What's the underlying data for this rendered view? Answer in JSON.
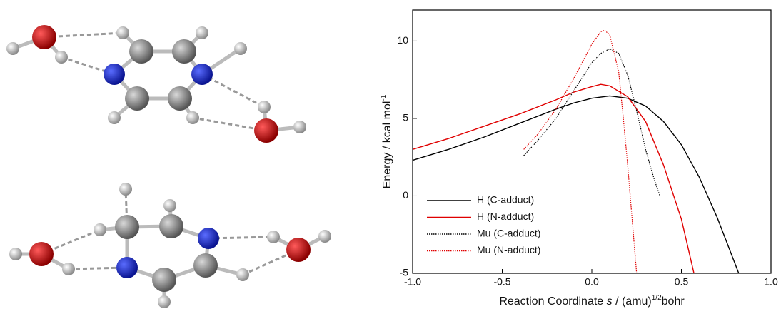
{
  "chart_data": {
    "type": "line",
    "xlabel": {
      "text": "Reaction Coordinate ",
      "symbol": "s",
      "unit": " / (amu)",
      "exponent": "1/2",
      "tail": "bohr"
    },
    "ylabel": {
      "text": "Energy / kcal mol",
      "exponent": "-1"
    },
    "xlim": [
      -1.0,
      1.0
    ],
    "ylim": [
      -5,
      12
    ],
    "xticks": [
      {
        "value": -1.0,
        "label": "-1.0"
      },
      {
        "value": -0.5,
        "label": "-0.5"
      },
      {
        "value": 0,
        "label": "0.0"
      },
      {
        "value": 0.5,
        "label": "0.5"
      },
      {
        "value": 1.0,
        "label": "1.0"
      }
    ],
    "yticks": [
      -5,
      0,
      5,
      10
    ],
    "legend": "lower left",
    "series": [
      {
        "name": "H (C-adduct)",
        "color": "#000000",
        "style": "solid",
        "x": [
          -1.0,
          -0.8,
          -0.6,
          -0.4,
          -0.2,
          -0.1,
          0.0,
          0.1,
          0.2,
          0.3,
          0.4,
          0.5,
          0.6,
          0.7,
          0.82
        ],
        "values": [
          2.3,
          3.0,
          3.8,
          4.7,
          5.6,
          6.0,
          6.3,
          6.45,
          6.3,
          5.8,
          4.8,
          3.3,
          1.2,
          -1.4,
          -5.0
        ]
      },
      {
        "name": "H (N-adduct)",
        "color": "#e00000",
        "style": "solid",
        "x": [
          -1.0,
          -0.8,
          -0.6,
          -0.4,
          -0.2,
          -0.1,
          0.0,
          0.05,
          0.1,
          0.2,
          0.3,
          0.4,
          0.5,
          0.57
        ],
        "values": [
          3.0,
          3.7,
          4.5,
          5.3,
          6.2,
          6.7,
          7.05,
          7.2,
          7.1,
          6.4,
          4.8,
          2.0,
          -1.5,
          -5.0
        ]
      },
      {
        "name": "Mu (C-adduct)",
        "color": "#000000",
        "style": "dotted",
        "x": [
          -0.38,
          -0.3,
          -0.2,
          -0.1,
          0.0,
          0.05,
          0.1,
          0.15,
          0.2,
          0.25,
          0.3,
          0.35,
          0.38
        ],
        "values": [
          2.6,
          3.6,
          5.0,
          6.8,
          8.6,
          9.2,
          9.5,
          9.2,
          7.8,
          5.5,
          3.0,
          1.0,
          0.0
        ]
      },
      {
        "name": "Mu (N-adduct)",
        "color": "#e00000",
        "style": "dotted",
        "x": [
          -0.38,
          -0.3,
          -0.2,
          -0.1,
          0.0,
          0.05,
          0.07,
          0.1,
          0.15,
          0.18,
          0.2,
          0.22,
          0.25
        ],
        "values": [
          3.0,
          4.0,
          5.6,
          7.6,
          9.8,
          10.6,
          10.7,
          10.4,
          8.0,
          4.5,
          2.0,
          -0.8,
          -5.0
        ]
      }
    ]
  }
}
